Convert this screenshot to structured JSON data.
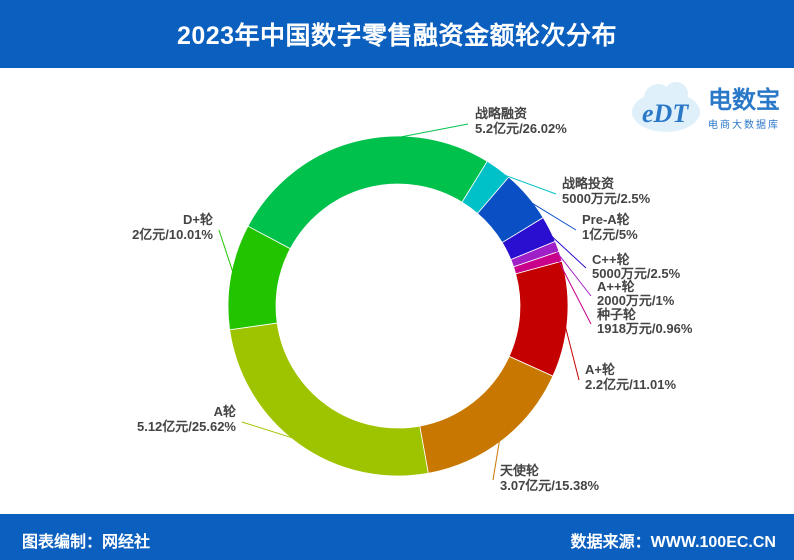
{
  "title": "2023年中国数字零售融资金额轮次分布",
  "footer": {
    "left": "图表编制：网经社",
    "right": "数据来源：WWW.100EC.CN"
  },
  "logo": {
    "letters": "eDT",
    "name": "电数宝",
    "subtitle": "电商大数据库"
  },
  "chart_data": {
    "type": "pie",
    "donut": true,
    "legend": "none",
    "slices": [
      {
        "label": "战略融资",
        "value_text": "5.2亿元/26.02%",
        "percent": 26.02,
        "color": "#00c14b"
      },
      {
        "label": "战略投资",
        "value_text": "5000万元/2.5%",
        "percent": 2.5,
        "color": "#00c1c8"
      },
      {
        "label": "Pre-A轮",
        "value_text": "1亿元/5%",
        "percent": 5.0,
        "color": "#0a4fc4"
      },
      {
        "label": "C++轮",
        "value_text": "5000万元/2.5%",
        "percent": 2.5,
        "color": "#2b0fd0"
      },
      {
        "label": "A++轮",
        "value_text": "2000万元/1%",
        "percent": 1.0,
        "color": "#a020c8"
      },
      {
        "label": "种子轮",
        "value_text": "1918万元/0.96%",
        "percent": 0.96,
        "color": "#c8008a"
      },
      {
        "label": "A+轮",
        "value_text": "2.2亿元/11.01%",
        "percent": 11.01,
        "color": "#c40000"
      },
      {
        "label": "天使轮",
        "value_text": "3.07亿元/15.38%",
        "percent": 15.38,
        "color": "#c87800"
      },
      {
        "label": "A轮",
        "value_text": "5.12亿元/25.62%",
        "percent": 25.62,
        "color": "#9ec400"
      },
      {
        "label": "D+轮",
        "value_text": "2亿元/10.01%",
        "percent": 10.01,
        "color": "#22c400"
      }
    ]
  }
}
